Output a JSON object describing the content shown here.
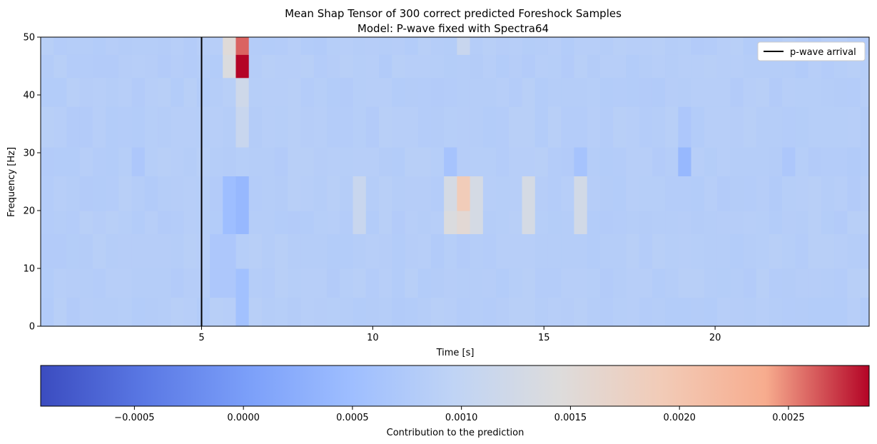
{
  "chart_data": {
    "type": "heatmap",
    "title": "Mean Shap Tensor of 300 correct predicted Foreshock Samples",
    "subtitle": "Model: P-wave fixed with Spectra64",
    "xlabel": "Time [s]",
    "ylabel": "Frequency [Hz]",
    "xlim": [
      0.3,
      24.5
    ],
    "ylim": [
      0,
      50
    ],
    "x_ticks": [
      5,
      10,
      15,
      20
    ],
    "y_ticks": [
      0,
      10,
      20,
      30,
      40,
      50
    ],
    "x_tick_labels": [
      "5",
      "10",
      "15",
      "20"
    ],
    "y_tick_labels": [
      "0",
      "10",
      "20",
      "30",
      "40",
      "50"
    ],
    "grid": false,
    "colormap": "coolwarm",
    "colorbar": {
      "label": "Contribution to the prediction",
      "range": [
        -0.00093,
        0.00287
      ],
      "ticks": [
        -0.0005,
        0.0,
        0.0005,
        0.001,
        0.0015,
        0.002,
        0.0025
      ],
      "tick_labels": [
        "−0.0005",
        "0.0000",
        "0.0005",
        "0.0010",
        "0.0015",
        "0.0020",
        "0.0025"
      ]
    },
    "legend": {
      "position": "top-right",
      "entries": [
        "p-wave arrival"
      ]
    },
    "vline": {
      "x": 5.0,
      "label": "p-wave arrival",
      "color": "#000000"
    },
    "time_bins": {
      "start": 0.3,
      "step": 0.38,
      "count": 64
    },
    "freq_bands": [
      0,
      5,
      10,
      16,
      20,
      26,
      31,
      38,
      43,
      47,
      50
    ],
    "hotspots": [
      {
        "t": 6.1,
        "f_lo": 47,
        "f_hi": 50,
        "value": 0.0026
      },
      {
        "t": 6.1,
        "f_lo": 43,
        "f_hi": 47,
        "value": 0.00287
      },
      {
        "t": 5.75,
        "f_lo": 47,
        "f_hi": 50,
        "value": 0.0015
      },
      {
        "t": 5.75,
        "f_lo": 43,
        "f_hi": 47,
        "value": 0.0014
      },
      {
        "t": 6.1,
        "f_lo": 38,
        "f_hi": 43,
        "value": 0.0012
      },
      {
        "t": 6.1,
        "f_lo": 31,
        "f_hi": 38,
        "value": 0.0011
      },
      {
        "t": 12.6,
        "f_lo": 20,
        "f_hi": 26,
        "value": 0.0019
      },
      {
        "t": 12.6,
        "f_lo": 16,
        "f_hi": 20,
        "value": 0.00155
      },
      {
        "t": 12.2,
        "f_lo": 16,
        "f_hi": 20,
        "value": 0.0014
      },
      {
        "t": 12.2,
        "f_lo": 20,
        "f_hi": 26,
        "value": 0.0013
      },
      {
        "t": 13.0,
        "f_lo": 16,
        "f_hi": 26,
        "value": 0.0013
      },
      {
        "t": 14.2,
        "f_lo": 16,
        "f_hi": 26,
        "value": 0.0013
      },
      {
        "t": 15.7,
        "f_lo": 16,
        "f_hi": 26,
        "value": 0.00125
      },
      {
        "t": 9.3,
        "f_lo": 16,
        "f_hi": 26,
        "value": 0.0011
      },
      {
        "t": 12.6,
        "f_lo": 47,
        "f_hi": 50,
        "value": 0.0011
      },
      {
        "t": 6.1,
        "f_lo": 16,
        "f_hi": 26,
        "value": 0.0004
      },
      {
        "t": 5.75,
        "f_lo": 16,
        "f_hi": 26,
        "value": 0.0005
      },
      {
        "t": 6.1,
        "f_lo": 0,
        "f_hi": 10,
        "value": 0.00055
      },
      {
        "t": 5.75,
        "f_lo": 5,
        "f_hi": 16,
        "value": 0.0007
      },
      {
        "t": 5.3,
        "f_lo": 5,
        "f_hi": 16,
        "value": 0.0007
      },
      {
        "t": 18.8,
        "f_lo": 26,
        "f_hi": 31,
        "value": 0.0004
      },
      {
        "t": 18.8,
        "f_lo": 31,
        "f_hi": 38,
        "value": 0.0007
      },
      {
        "t": 15.7,
        "f_lo": 26,
        "f_hi": 31,
        "value": 0.0006
      },
      {
        "t": 11.9,
        "f_lo": 26,
        "f_hi": 31,
        "value": 0.0006
      },
      {
        "t": 21.8,
        "f_lo": 26,
        "f_hi": 31,
        "value": 0.0007
      },
      {
        "t": 3.0,
        "f_lo": 26,
        "f_hi": 31,
        "value": 0.0007
      }
    ],
    "background_value": 0.00082
  }
}
